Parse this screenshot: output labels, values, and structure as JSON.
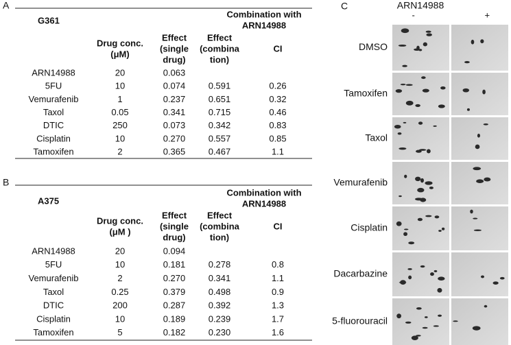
{
  "panel_a": {
    "label": "A",
    "cell_line": "G361",
    "group_header": [
      "Combination with",
      "ARN14988"
    ],
    "columns": [
      [
        "Drug conc.",
        "(μM)"
      ],
      [
        "Effect",
        "(single",
        "drug)"
      ],
      [
        "Effect",
        "(combina",
        "tion)"
      ],
      [
        "CI"
      ]
    ],
    "rows": [
      [
        "ARN14988",
        "20",
        "0.063"
      ],
      [
        "5FU",
        "10",
        "0.074",
        "0.591",
        "0.26"
      ],
      [
        "Vemurafenib",
        "1",
        "0.237",
        "0.651",
        "0.32"
      ],
      [
        "Taxol",
        "0.05",
        "0.341",
        "0.715",
        "0.46"
      ],
      [
        "DTIC",
        "250",
        "0.073",
        "0.342",
        "0.83"
      ],
      [
        "Cisplatin",
        "10",
        "0.270",
        "0.557",
        "0.85"
      ],
      [
        "Tamoxifen",
        "2",
        "0.365",
        "0.467",
        "1.1"
      ]
    ]
  },
  "panel_b": {
    "label": "B",
    "cell_line": "A375",
    "group_header": [
      "Combination with",
      "ARN14988"
    ],
    "columns": [
      [
        "Drug conc.",
        "(μM )"
      ],
      [
        "Effect",
        "(single",
        "drug)"
      ],
      [
        "Effect",
        "(combina",
        "tion)"
      ],
      [
        "CI"
      ]
    ],
    "rows": [
      [
        "ARN14988",
        "20",
        "0.094"
      ],
      [
        "5FU",
        "10",
        "0.181",
        "0.278",
        "0.8"
      ],
      [
        "Vemurafenib",
        "2",
        "0.270",
        "0.341",
        "1.1"
      ],
      [
        "Taxol",
        "0.25",
        "0.379",
        "0.498",
        "0.9"
      ],
      [
        "DTIC",
        "200",
        "0.287",
        "0.392",
        "1.3"
      ],
      [
        "Cisplatin",
        "10",
        "0.189",
        "0.239",
        "1.7"
      ],
      [
        "Tamoxifen",
        "5",
        "0.182",
        "0.230",
        "1.6"
      ]
    ]
  },
  "panel_c": {
    "label": "C",
    "header": "ARN14988",
    "conditions": [
      "-",
      "+"
    ],
    "rows": [
      "DMSO",
      "Tamoxifen",
      "Taxol",
      "Vemurafenib",
      "Cisplatin",
      "Dacarbazine",
      "5-fluorouracil"
    ]
  }
}
